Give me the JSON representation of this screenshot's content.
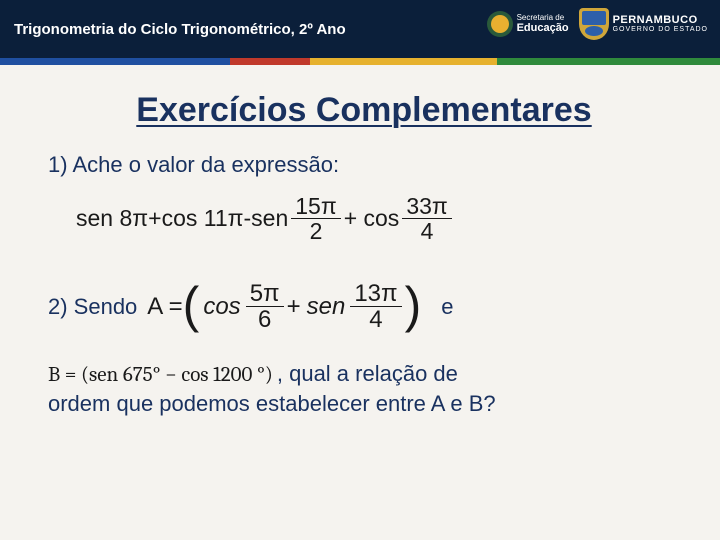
{
  "header": {
    "title": "Trigonometria do Ciclo Trigonométrico, 2º Ano",
    "background_color": "#0b1f3a",
    "title_color": "#ffffff",
    "stripe_colors": [
      "#1f4fa0",
      "#c0392b",
      "#e6b12e",
      "#2f8a3c"
    ],
    "logo_sec": {
      "line1": "Secretaria de",
      "line2": "Educação"
    },
    "logo_pe": {
      "line1": "PERNAMBUCO",
      "line2": "GOVERNO DO ESTADO"
    }
  },
  "page": {
    "background_color": "#f5f3ef",
    "text_color": "#19315f",
    "math_color": "#1a1a1a"
  },
  "title": "Exercícios Complementares",
  "q1": {
    "prompt": "1) Ache o valor da expressão:",
    "expr_prefix": "sen 8π+cos 11π-sen",
    "frac1": {
      "num": "15π",
      "den": "2"
    },
    "mid": " + cos ",
    "frac2": {
      "num": "33π",
      "den": "4"
    }
  },
  "q2": {
    "label": "2) Sendo",
    "A_prefix": "A = ",
    "A_term1_fn": "cos",
    "A_term1_frac": {
      "num": "5π",
      "den": "6"
    },
    "A_plus": " + ",
    "A_term2_fn": "sen",
    "A_term2_frac": {
      "num": "13π",
      "den": "4"
    },
    "trail": "e",
    "B_expr": "B = (sen 675° − cos 1200    °)",
    "after_B": ", qual a relação de",
    "line4": "ordem que podemos estabelecer entre A e B?"
  }
}
